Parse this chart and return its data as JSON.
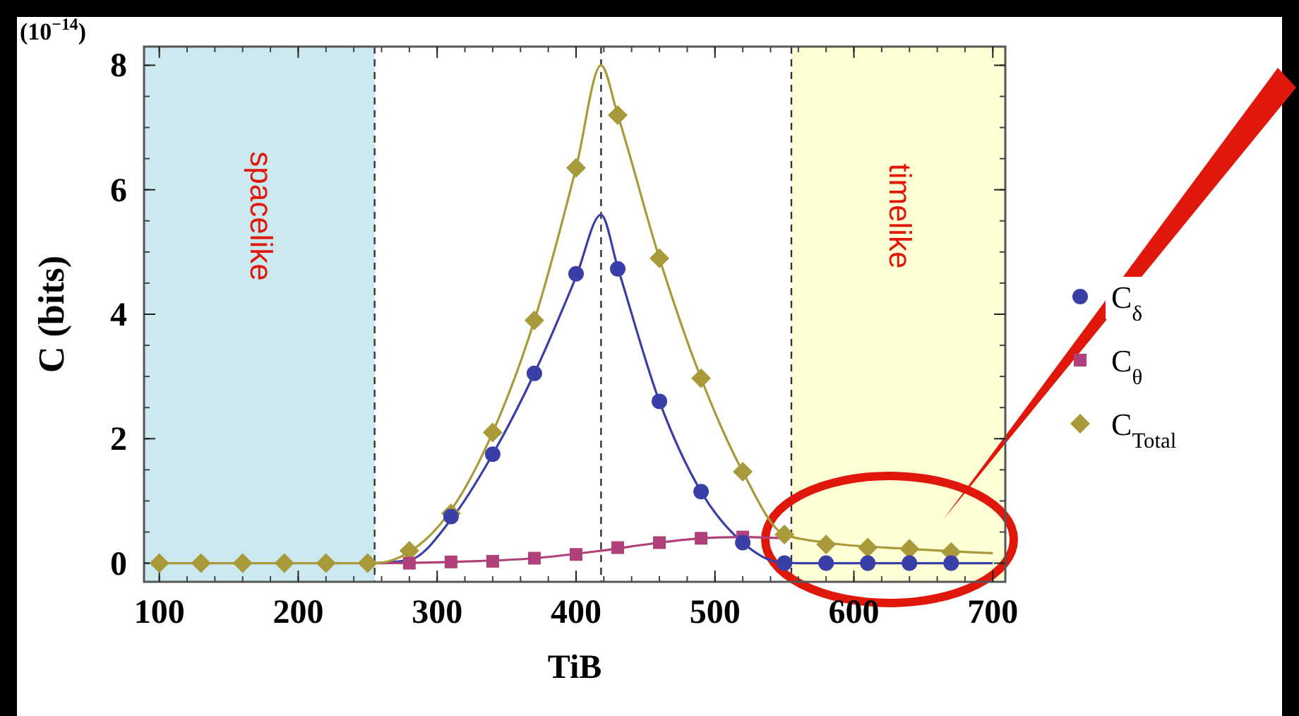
{
  "chart_data": {
    "type": "scatter",
    "xlabel": "TiB",
    "ylabel": "C (bits)",
    "annotations": [
      "(10$^{−14}$)"
    ],
    "xlim": [
      89,
      709
    ],
    "xticks": [
      100,
      200,
      300,
      400,
      500,
      600,
      700
    ],
    "ylim": [
      -0.3,
      8.3
    ],
    "yticks": [
      0,
      2,
      4,
      6,
      8
    ],
    "x": [
      100,
      130,
      160,
      190,
      220,
      250,
      280,
      310,
      340,
      370,
      400,
      430,
      460,
      490,
      520,
      550,
      580,
      610,
      640,
      670
    ],
    "series": [
      {
        "name": "C$_{δ}$",
        "color": "#3a3fa8",
        "marker": "circle",
        "values": [
          null,
          null,
          null,
          null,
          null,
          null,
          null,
          0.75,
          1.75,
          3.05,
          4.65,
          4.73,
          2.6,
          1.15,
          0.33,
          0,
          0,
          0,
          0,
          0
        ]
      },
      {
        "name": "C$_{θ}$",
        "color": "#b0407a",
        "marker": "square",
        "values": [
          null,
          null,
          null,
          null,
          null,
          null,
          0,
          0.02,
          0.03,
          0.08,
          0.14,
          0.25,
          0.33,
          0.4,
          0.42,
          null,
          null,
          null,
          null,
          null
        ]
      },
      {
        "name": "C$_{Total}$",
        "color": "#a89a3a",
        "marker": "diamond",
        "values": [
          0,
          0,
          0,
          0,
          0,
          0,
          0.2,
          0.8,
          2.1,
          3.9,
          6.35,
          7.2,
          4.9,
          2.97,
          1.47,
          0.46,
          0.3,
          0.25,
          0.23,
          0.18
        ]
      },
      {
        "type": "line",
        "color": "#3a3fa8",
        "x": [
          255,
          280,
          310,
          340,
          370,
          400,
          418,
          430,
          460,
          490,
          520,
          545,
          560,
          700
        ],
        "values": [
          0,
          0.05,
          0.7,
          1.75,
          3.05,
          4.6,
          5.6,
          4.75,
          2.6,
          1.15,
          0.33,
          0.02,
          0,
          0
        ]
      },
      {
        "type": "line",
        "color": "#b0407a",
        "x": [
          255,
          310,
          370,
          418,
          460,
          490,
          520,
          550
        ],
        "values": [
          0,
          0.02,
          0.08,
          0.2,
          0.33,
          0.4,
          0.42,
          0.4
        ]
      },
      {
        "type": "line",
        "color": "#a89a3a",
        "x": [
          100,
          255,
          280,
          310,
          340,
          370,
          400,
          418,
          430,
          460,
          490,
          520,
          550,
          580,
          640,
          700
        ],
        "values": [
          0,
          0,
          0.18,
          0.85,
          2.1,
          3.9,
          6.35,
          8.0,
          7.2,
          4.9,
          2.97,
          1.47,
          0.46,
          0.33,
          0.23,
          0.16
        ]
      }
    ],
    "bands": [
      {
        "axis": "x",
        "from": 89,
        "to": 255,
        "label": "spacelike",
        "color": "#cde9f0"
      },
      {
        "axis": "x",
        "from": 555,
        "to": 709,
        "label": "timelike",
        "color": "#ffffd5"
      }
    ],
    "ref_lines": [
      {
        "axis": "x",
        "value": 255,
        "line_style": "dashed"
      },
      {
        "axis": "x",
        "value": 418,
        "line_style": "dashed"
      },
      {
        "axis": "x",
        "value": 555,
        "line_style": "dashed"
      }
    ],
    "legend": "right",
    "grid": false
  }
}
